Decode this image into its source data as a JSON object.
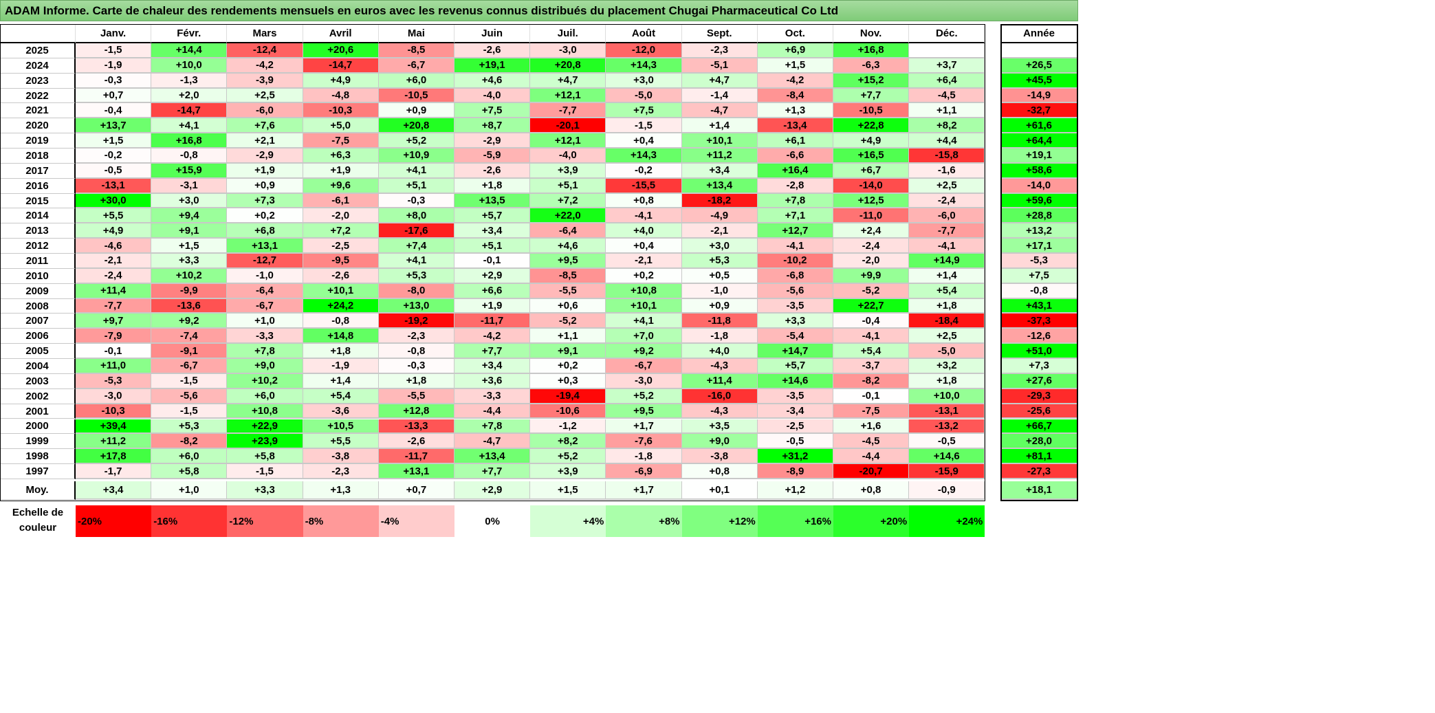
{
  "title": "ADAM Informe. Carte de chaleur des rendements mensuels en euros avec les revenus connus distribués du placement Chugai Pharmaceutical Co Ltd",
  "chart_data": {
    "type": "heatmap",
    "columns": [
      "Janv.",
      "Févr.",
      "Mars",
      "Avril",
      "Mai",
      "Juin",
      "Juil.",
      "Août",
      "Sept.",
      "Oct.",
      "Nov.",
      "Déc."
    ],
    "annual_header": "Année",
    "rows": [
      {
        "year": "2025",
        "values": [
          "-1,5",
          "+14,4",
          "-12,4",
          "+20,6",
          "-8,5",
          "-2,6",
          "-3,0",
          "-12,0",
          "-2,3",
          "+6,9",
          "+16,8",
          ""
        ],
        "annual": ""
      },
      {
        "year": "2024",
        "values": [
          "-1,9",
          "+10,0",
          "-4,2",
          "-14,7",
          "-6,7",
          "+19,1",
          "+20,8",
          "+14,3",
          "-5,1",
          "+1,5",
          "-6,3",
          "+3,7"
        ],
        "annual": "+26,5"
      },
      {
        "year": "2023",
        "values": [
          "-0,3",
          "-1,3",
          "-3,9",
          "+4,9",
          "+6,0",
          "+4,6",
          "+4,7",
          "+3,0",
          "+4,7",
          "-4,2",
          "+15,2",
          "+6,4"
        ],
        "annual": "+45,5"
      },
      {
        "year": "2022",
        "values": [
          "+0,7",
          "+2,0",
          "+2,5",
          "-4,8",
          "-10,5",
          "-4,0",
          "+12,1",
          "-5,0",
          "-1,4",
          "-8,4",
          "+7,7",
          "-4,5"
        ],
        "annual": "-14,9"
      },
      {
        "year": "2021",
        "values": [
          "-0,4",
          "-14,7",
          "-6,0",
          "-10,3",
          "+0,9",
          "+7,5",
          "-7,7",
          "+7,5",
          "-4,7",
          "+1,3",
          "-10,5",
          "+1,1"
        ],
        "annual": "-32,7"
      },
      {
        "year": "2020",
        "values": [
          "+13,7",
          "+4,1",
          "+7,6",
          "+5,0",
          "+20,8",
          "+8,7",
          "-20,1",
          "-1,5",
          "+1,4",
          "-13,4",
          "+22,8",
          "+8,2"
        ],
        "annual": "+61,6"
      },
      {
        "year": "2019",
        "values": [
          "+1,5",
          "+16,8",
          "+2,1",
          "-7,5",
          "+5,2",
          "-2,9",
          "+12,1",
          "+0,4",
          "+10,1",
          "+6,1",
          "+4,9",
          "+4,4"
        ],
        "annual": "+64,4"
      },
      {
        "year": "2018",
        "values": [
          "-0,2",
          "-0,8",
          "-2,9",
          "+6,3",
          "+10,9",
          "-5,9",
          "-4,0",
          "+14,3",
          "+11,2",
          "-6,6",
          "+16,5",
          "-15,8"
        ],
        "annual": "+19,1"
      },
      {
        "year": "2017",
        "values": [
          "-0,5",
          "+15,9",
          "+1,9",
          "+1,9",
          "+4,1",
          "-2,6",
          "+3,9",
          "-0,2",
          "+3,4",
          "+16,4",
          "+6,7",
          "-1,6"
        ],
        "annual": "+58,6"
      },
      {
        "year": "2016",
        "values": [
          "-13,1",
          "-3,1",
          "+0,9",
          "+9,6",
          "+5,1",
          "+1,8",
          "+5,1",
          "-15,5",
          "+13,4",
          "-2,8",
          "-14,0",
          "+2,5"
        ],
        "annual": "-14,0"
      },
      {
        "year": "2015",
        "values": [
          "+30,0",
          "+3,0",
          "+7,3",
          "-6,1",
          "-0,3",
          "+13,5",
          "+7,2",
          "+0,8",
          "-18,2",
          "+7,8",
          "+12,5",
          "-2,4"
        ],
        "annual": "+59,6"
      },
      {
        "year": "2014",
        "values": [
          "+5,5",
          "+9,4",
          "+0,2",
          "-2,0",
          "+8,0",
          "+5,7",
          "+22,0",
          "-4,1",
          "-4,9",
          "+7,1",
          "-11,0",
          "-6,0"
        ],
        "annual": "+28,8"
      },
      {
        "year": "2013",
        "values": [
          "+4,9",
          "+9,1",
          "+6,8",
          "+7,2",
          "-17,6",
          "+3,4",
          "-6,4",
          "+4,0",
          "-2,1",
          "+12,7",
          "+2,4",
          "-7,7"
        ],
        "annual": "+13,2"
      },
      {
        "year": "2012",
        "values": [
          "-4,6",
          "+1,5",
          "+13,1",
          "-2,5",
          "+7,4",
          "+5,1",
          "+4,6",
          "+0,4",
          "+3,0",
          "-4,1",
          "-2,4",
          "-4,1"
        ],
        "annual": "+17,1"
      },
      {
        "year": "2011",
        "values": [
          "-2,1",
          "+3,3",
          "-12,7",
          "-9,5",
          "+4,1",
          "-0,1",
          "+9,5",
          "-2,1",
          "+5,3",
          "-10,2",
          "-2,0",
          "+14,9"
        ],
        "annual": "-5,3"
      },
      {
        "year": "2010",
        "values": [
          "-2,4",
          "+10,2",
          "-1,0",
          "-2,6",
          "+5,3",
          "+2,9",
          "-8,5",
          "+0,2",
          "+0,5",
          "-6,8",
          "+9,9",
          "+1,4"
        ],
        "annual": "+7,5"
      },
      {
        "year": "2009",
        "values": [
          "+11,4",
          "-9,9",
          "-6,4",
          "+10,1",
          "-8,0",
          "+6,6",
          "-5,5",
          "+10,8",
          "-1,0",
          "-5,6",
          "-5,2",
          "+5,4"
        ],
        "annual": "-0,8"
      },
      {
        "year": "2008",
        "values": [
          "-7,7",
          "-13,6",
          "-6,7",
          "+24,2",
          "+13,0",
          "+1,9",
          "+0,6",
          "+10,1",
          "+0,9",
          "-3,5",
          "+22,7",
          "+1,8"
        ],
        "annual": "+43,1"
      },
      {
        "year": "2007",
        "values": [
          "+9,7",
          "+9,2",
          "+1,0",
          "-0,8",
          "-19,2",
          "-11,7",
          "-5,2",
          "+4,1",
          "-11,8",
          "+3,3",
          "-0,4",
          "-18,4"
        ],
        "annual": "-37,3"
      },
      {
        "year": "2006",
        "values": [
          "-7,9",
          "-7,4",
          "-3,3",
          "+14,8",
          "-2,3",
          "-4,2",
          "+1,1",
          "+7,0",
          "-1,8",
          "-5,4",
          "-4,1",
          "+2,5"
        ],
        "annual": "-12,6"
      },
      {
        "year": "2005",
        "values": [
          "-0,1",
          "-9,1",
          "+7,8",
          "+1,8",
          "-0,8",
          "+7,7",
          "+9,1",
          "+9,2",
          "+4,0",
          "+14,7",
          "+5,4",
          "-5,0"
        ],
        "annual": "+51,0"
      },
      {
        "year": "2004",
        "values": [
          "+11,0",
          "-6,7",
          "+9,0",
          "-1,9",
          "-0,3",
          "+3,4",
          "+0,2",
          "-6,7",
          "-4,3",
          "+5,7",
          "-3,7",
          "+3,2"
        ],
        "annual": "+7,3"
      },
      {
        "year": "2003",
        "values": [
          "-5,3",
          "-1,5",
          "+10,2",
          "+1,4",
          "+1,8",
          "+3,6",
          "+0,3",
          "-3,0",
          "+11,4",
          "+14,6",
          "-8,2",
          "+1,8"
        ],
        "annual": "+27,6"
      },
      {
        "year": "2002",
        "values": [
          "-3,0",
          "-5,6",
          "+6,0",
          "+5,4",
          "-5,5",
          "-3,3",
          "-19,4",
          "+5,2",
          "-16,0",
          "-3,5",
          "-0,1",
          "+10,0"
        ],
        "annual": "-29,3"
      },
      {
        "year": "2001",
        "values": [
          "-10,3",
          "-1,5",
          "+10,8",
          "-3,6",
          "+12,8",
          "-4,4",
          "-10,6",
          "+9,5",
          "-4,3",
          "-3,4",
          "-7,5",
          "-13,1"
        ],
        "annual": "-25,6"
      },
      {
        "year": "2000",
        "values": [
          "+39,4",
          "+5,3",
          "+22,9",
          "+10,5",
          "-13,3",
          "+7,8",
          "-1,2",
          "+1,7",
          "+3,5",
          "-2,5",
          "+1,6",
          "-13,2"
        ],
        "annual": "+66,7"
      },
      {
        "year": "1999",
        "values": [
          "+11,2",
          "-8,2",
          "+23,9",
          "+5,5",
          "-2,6",
          "-4,7",
          "+8,2",
          "-7,6",
          "+9,0",
          "-0,5",
          "-4,5",
          "-0,5"
        ],
        "annual": "+28,0"
      },
      {
        "year": "1998",
        "values": [
          "+17,8",
          "+6,0",
          "+5,8",
          "-3,8",
          "-11,7",
          "+13,4",
          "+5,2",
          "-1,8",
          "-3,8",
          "+31,2",
          "-4,4",
          "+14,6"
        ],
        "annual": "+81,1"
      },
      {
        "year": "1997",
        "values": [
          "-1,7",
          "+5,8",
          "-1,5",
          "-2,3",
          "+13,1",
          "+7,7",
          "+3,9",
          "-6,9",
          "+0,8",
          "-8,9",
          "-20,7",
          "-15,9"
        ],
        "annual": "-27,3"
      }
    ],
    "average": {
      "label": "Moy.",
      "values": [
        "+3,4",
        "+1,0",
        "+3,3",
        "+1,3",
        "+0,7",
        "+2,9",
        "+1,5",
        "+1,7",
        "+0,1",
        "+1,2",
        "+0,8",
        "-0,9"
      ],
      "annual": "+18,1"
    },
    "scale": {
      "label_line1": "Echelle de",
      "label_line2": "couleur",
      "steps": [
        "-20%",
        "-16%",
        "-12%",
        "-8%",
        "-4%",
        "0%",
        "+4%",
        "+8%",
        "+12%",
        "+16%",
        "+20%",
        "+24%"
      ]
    },
    "colors": {
      "negative_max": "#ff0000",
      "positive_max": "#00ff00",
      "neutral": "#ffffff",
      "title_bar": "#8fd18a"
    }
  }
}
